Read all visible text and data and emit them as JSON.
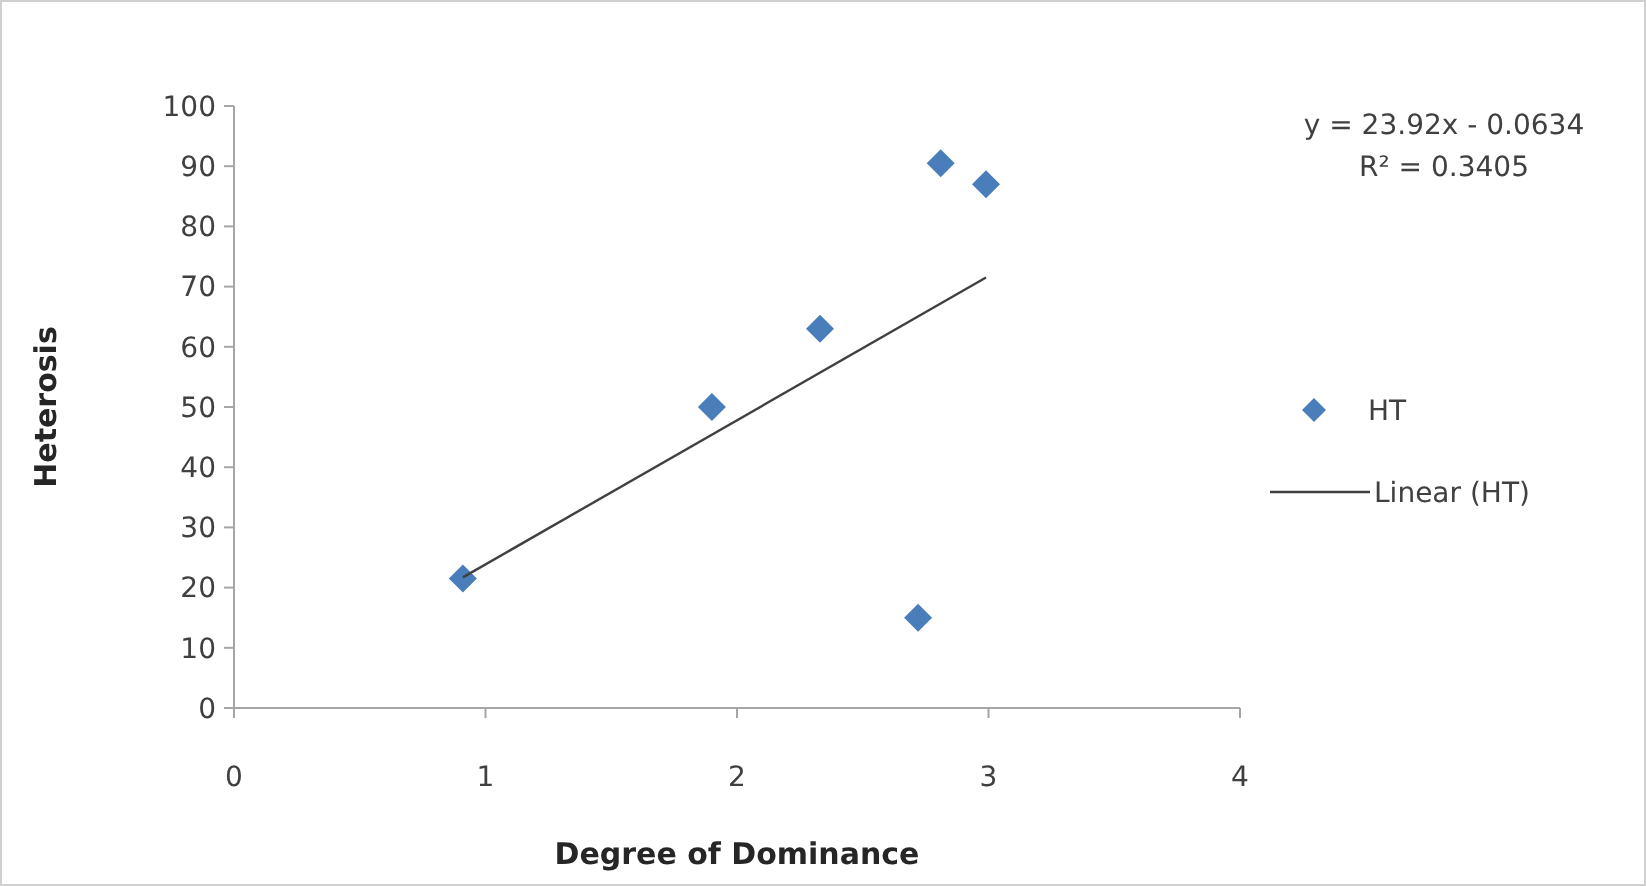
{
  "chart_data": {
    "type": "scatter",
    "xlabel": "Degree of Dominance",
    "ylabel": "Heterosis",
    "xlim": [
      0,
      4
    ],
    "xticks": [
      0,
      1,
      2,
      3,
      4
    ],
    "ylim": [
      0,
      100
    ],
    "yticks": [
      0,
      10,
      20,
      30,
      40,
      50,
      60,
      70,
      80,
      90,
      100
    ],
    "grid": false,
    "legend": "right",
    "marker": "diamond",
    "annotations": [
      "y = 23.92x - 0.0634",
      "R² = 0.3405"
    ],
    "series": [
      {
        "name": "HT",
        "color": "#4a7ebb",
        "x": [
          0.91,
          1.9,
          2.33,
          2.72,
          2.81,
          2.99
        ],
        "values": [
          21.5,
          50,
          63,
          15,
          90.5,
          87
        ]
      },
      {
        "name": "Linear (HT)",
        "type": "line",
        "color": "#404040",
        "line_style": "solid",
        "marker": "none",
        "x": [
          0.91,
          2.99
        ],
        "values": [
          21.7,
          71.5
        ]
      }
    ]
  }
}
